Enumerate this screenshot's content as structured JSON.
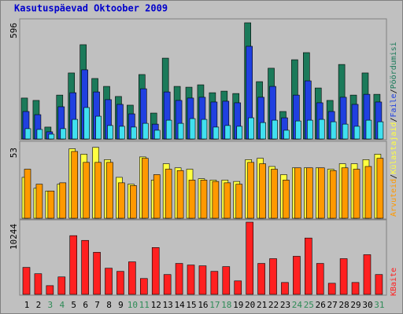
{
  "chart_data": [
    {
      "type": "bar",
      "title": "Kasutuspäevad Oktoober 2009",
      "legend_separator": "/",
      "ylim": [
        0,
        596
      ],
      "yticks": [
        596
      ],
      "series": [
        {
          "name": "Pöördumisi",
          "color": "#1b7a5a",
          "values": [
            207,
            195,
            60,
            222,
            334,
            477,
            306,
            266,
            215,
            171,
            326,
            131,
            409,
            266,
            262,
            274,
            234,
            242,
            230,
            588,
            290,
            358,
            139,
            401,
            437,
            258,
            195,
            377,
            222,
            334,
            226
          ]
        },
        {
          "name": "Faile",
          "color": "#2040e0",
          "values": [
            139,
            123,
            36,
            163,
            234,
            350,
            238,
            199,
            175,
            127,
            254,
            75,
            238,
            195,
            207,
            211,
            187,
            191,
            183,
            469,
            211,
            266,
            107,
            222,
            294,
            183,
            139,
            211,
            175,
            226,
            187
          ]
        },
        {
          "color": "#40e0f0",
          "values": [
            52,
            48,
            24,
            52,
            99,
            159,
            115,
            68,
            64,
            60,
            79,
            44,
            95,
            79,
            103,
            99,
            60,
            68,
            64,
            107,
            83,
            95,
            44,
            91,
            95,
            99,
            87,
            75,
            64,
            95,
            87
          ]
        }
      ]
    },
    {
      "type": "bar",
      "ylim": [
        0,
        53
      ],
      "yticks": [
        53
      ],
      "series": [
        {
          "name": "Külastajaid",
          "color": "#ffff40",
          "values": [
            30,
            22,
            20,
            25,
            51,
            47,
            52,
            43,
            30,
            25,
            45,
            28,
            40,
            37,
            36,
            29,
            28,
            28,
            27,
            43,
            44,
            38,
            32,
            37,
            37,
            37,
            36,
            40,
            40,
            43,
            47
          ]
        },
        {
          "name": "Arvuteid",
          "color": "#ff9900",
          "values": [
            36,
            25,
            20,
            26,
            49,
            41,
            41,
            41,
            26,
            24,
            44,
            32,
            36,
            35,
            28,
            28,
            27,
            26,
            25,
            41,
            40,
            36,
            28,
            37,
            37,
            37,
            35,
            37,
            36,
            38,
            44
          ]
        }
      ]
    },
    {
      "type": "bar",
      "ylim": [
        0,
        10244
      ],
      "yticks": [
        10244
      ],
      "categories": [
        "1",
        "2",
        "3",
        "4",
        "5",
        "6",
        "7",
        "8",
        "9",
        "10",
        "11",
        "12",
        "13",
        "14",
        "15",
        "16",
        "17",
        "18",
        "19",
        "20",
        "21",
        "22",
        "23",
        "24",
        "25",
        "26",
        "27",
        "28",
        "29",
        "30",
        "31"
      ],
      "category_colors": [
        "#000000",
        "#000000",
        "#2e8b57",
        "#2e8b57",
        "#000000",
        "#000000",
        "#000000",
        "#000000",
        "#000000",
        "#2e8b57",
        "#2e8b57",
        "#000000",
        "#000000",
        "#000000",
        "#000000",
        "#000000",
        "#2e8b57",
        "#2e8b57",
        "#000000",
        "#000000",
        "#000000",
        "#000000",
        "#000000",
        "#2e8b57",
        "#2e8b57",
        "#000000",
        "#000000",
        "#000000",
        "#000000",
        "#000000",
        "#2e8b57"
      ],
      "series": [
        {
          "name": "KBaite",
          "color": "#ff2020",
          "values": [
            3828,
            2928,
            1239,
            2477,
            8332,
            7657,
            5968,
            3716,
            3265,
            4617,
            2252,
            6643,
            2815,
            4391,
            4166,
            4054,
            3265,
            3941,
            1914,
            10244,
            4391,
            5067,
            1689,
            5405,
            7995,
            4391,
            1576,
            5067,
            1689,
            5630,
            2815
          ]
        }
      ]
    }
  ]
}
